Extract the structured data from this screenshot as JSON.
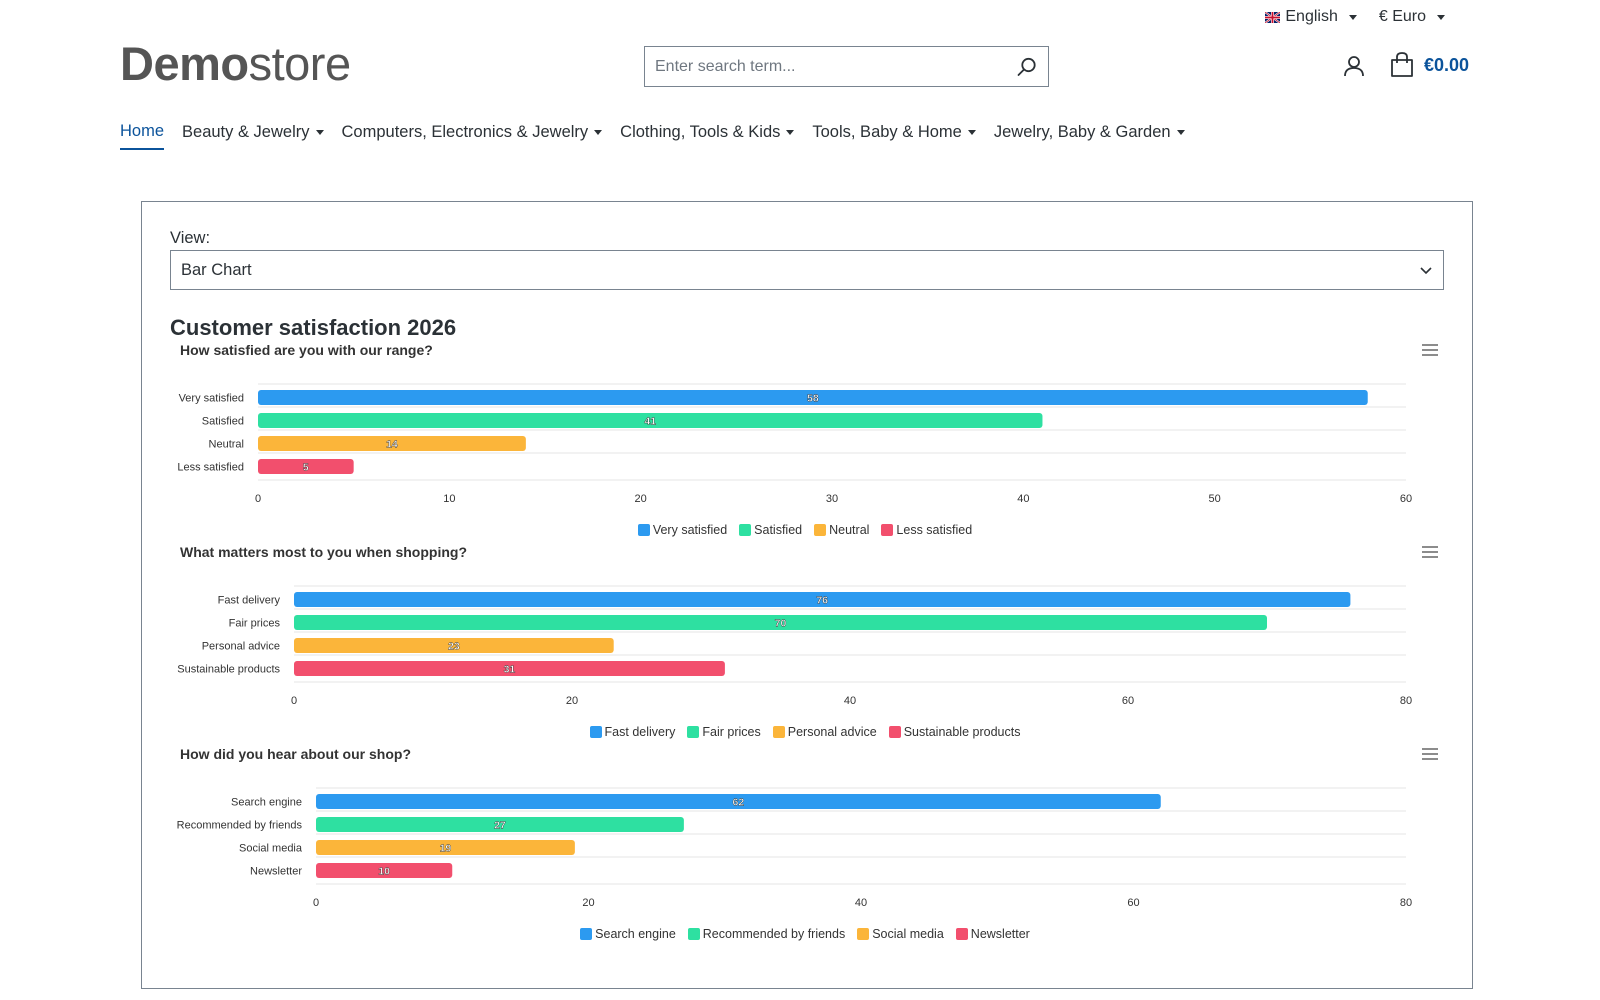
{
  "header": {
    "language": "English",
    "currency": "€ Euro",
    "logo_bold": "Demo",
    "logo_light": "store",
    "search_placeholder": "Enter search term...",
    "cart_total": "€0.00"
  },
  "nav": [
    "Home",
    "Beauty & Jewelry",
    "Computers, Electronics & Jewelry",
    "Clothing, Tools & Kids",
    "Tools, Baby & Home",
    "Jewelry, Baby & Garden"
  ],
  "view": {
    "label": "View:",
    "selected": "Bar Chart"
  },
  "page_title": "Customer satisfaction 2026",
  "colors": [
    "#2c9af0",
    "#2ee0a1",
    "#fbb53a",
    "#f24f6d"
  ],
  "chart_data": [
    {
      "type": "bar",
      "orientation": "horizontal",
      "title": "How satisfied are you with our range?",
      "categories": [
        "Very satisfied",
        "Satisfied",
        "Neutral",
        "Less satisfied"
      ],
      "values": [
        58,
        41,
        14,
        5
      ],
      "xlim": [
        0,
        60
      ],
      "ticks": [
        0,
        10,
        20,
        30,
        40,
        50,
        60
      ],
      "legend": "bottom-center",
      "grid": true
    },
    {
      "type": "bar",
      "orientation": "horizontal",
      "title": "What matters most to you when shopping?",
      "categories": [
        "Fast delivery",
        "Fair prices",
        "Personal advice",
        "Sustainable products"
      ],
      "values": [
        76,
        70,
        23,
        31
      ],
      "xlim": [
        0,
        80
      ],
      "ticks": [
        0,
        20,
        40,
        60,
        80
      ],
      "legend": "bottom-center",
      "grid": true
    },
    {
      "type": "bar",
      "orientation": "horizontal",
      "title": "How did you hear about our shop?",
      "categories": [
        "Search engine",
        "Recommended by friends",
        "Social media",
        "Newsletter"
      ],
      "values": [
        62,
        27,
        19,
        10
      ],
      "xlim": [
        0,
        80
      ],
      "ticks": [
        0,
        20,
        40,
        60,
        80
      ],
      "legend": "bottom-center",
      "grid": true
    }
  ]
}
